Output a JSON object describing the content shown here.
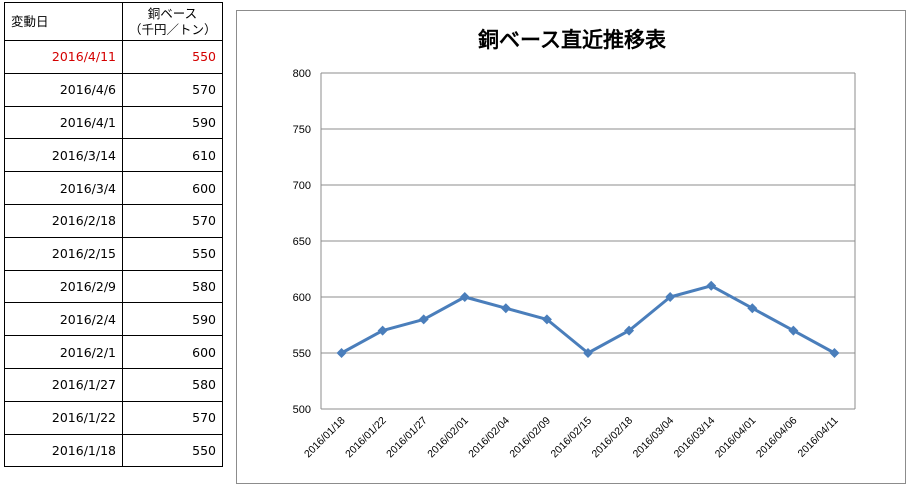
{
  "table": {
    "header_date": "変動日",
    "header_price_line1": "銅ベース",
    "header_price_line2": "（千円／トン）",
    "rows": [
      {
        "date": "2016/4/11",
        "price": "550"
      },
      {
        "date": "2016/4/6",
        "price": "570"
      },
      {
        "date": "2016/4/1",
        "price": "590"
      },
      {
        "date": "2016/3/14",
        "price": "610"
      },
      {
        "date": "2016/3/4",
        "price": "600"
      },
      {
        "date": "2016/2/18",
        "price": "570"
      },
      {
        "date": "2016/2/15",
        "price": "550"
      },
      {
        "date": "2016/2/9",
        "price": "580"
      },
      {
        "date": "2016/2/4",
        "price": "590"
      },
      {
        "date": "2016/2/1",
        "price": "600"
      },
      {
        "date": "2016/1/27",
        "price": "580"
      },
      {
        "date": "2016/1/22",
        "price": "570"
      },
      {
        "date": "2016/1/18",
        "price": "550"
      }
    ],
    "highlight_color": "#d40000"
  },
  "chart_data": {
    "type": "line",
    "title": "銅ベース直近推移表",
    "xlabel": "",
    "ylabel": "",
    "categories": [
      "2016/01/18",
      "2016/01/22",
      "2016/01/27",
      "2016/02/01",
      "2016/02/04",
      "2016/02/09",
      "2016/02/15",
      "2016/02/18",
      "2016/03/04",
      "2016/03/14",
      "2016/04/01",
      "2016/04/06",
      "2016/04/11"
    ],
    "series": [
      {
        "values": [
          550,
          570,
          580,
          600,
          590,
          580,
          550,
          570,
          600,
          610,
          590,
          570,
          550
        ],
        "color": "#4a7ebb"
      }
    ],
    "ylim": [
      500,
      800
    ],
    "yticks": [
      500,
      550,
      600,
      650,
      700,
      750,
      800
    ],
    "grid": true,
    "legend": "none",
    "marker": "diamond"
  }
}
